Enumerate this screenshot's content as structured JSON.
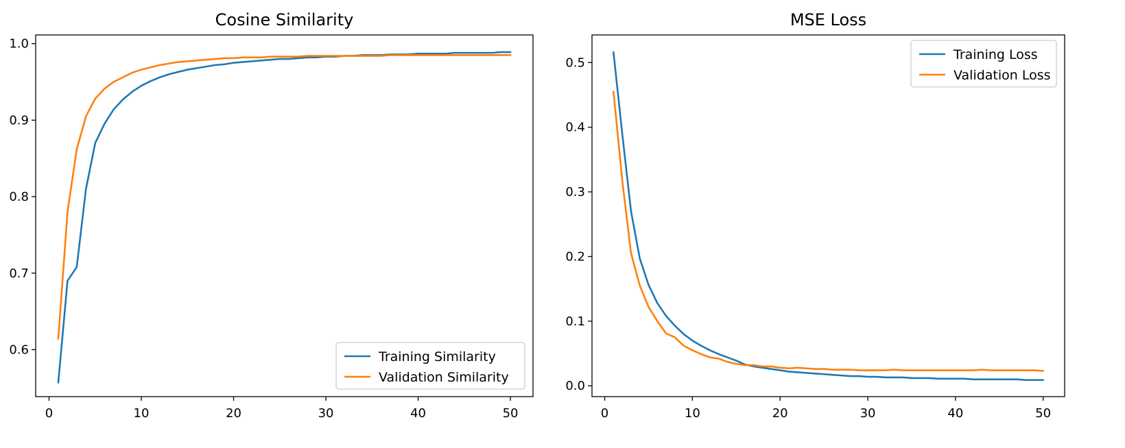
{
  "colors": {
    "training": "#1f77b4",
    "validation": "#ff7f0e"
  },
  "chart_data": [
    {
      "type": "line",
      "title": "Cosine Similarity",
      "xlabel": "",
      "ylabel": "",
      "xlim": [
        -1.45,
        52.45
      ],
      "ylim": [
        0.5386,
        1.0114
      ],
      "xticks": [
        0,
        10,
        20,
        30,
        40,
        50
      ],
      "yticks": [
        0.6,
        0.7,
        0.8,
        0.9,
        1.0
      ],
      "ytick_labels": [
        "0.6",
        "0.7",
        "0.8",
        "0.9",
        "1.0"
      ],
      "legend": "lower right",
      "grid": false,
      "x": [
        1,
        2,
        3,
        4,
        5,
        6,
        7,
        8,
        9,
        10,
        11,
        12,
        13,
        14,
        15,
        16,
        17,
        18,
        19,
        20,
        21,
        22,
        23,
        24,
        25,
        26,
        27,
        28,
        29,
        30,
        31,
        32,
        33,
        34,
        35,
        36,
        37,
        38,
        39,
        40,
        41,
        42,
        43,
        44,
        45,
        46,
        47,
        48,
        49,
        50
      ],
      "series": [
        {
          "name": "Training Similarity",
          "color_key": "training",
          "values": [
            0.557,
            0.69,
            0.708,
            0.81,
            0.87,
            0.895,
            0.914,
            0.927,
            0.937,
            0.945,
            0.951,
            0.956,
            0.96,
            0.963,
            0.966,
            0.968,
            0.97,
            0.972,
            0.973,
            0.975,
            0.976,
            0.977,
            0.978,
            0.979,
            0.98,
            0.98,
            0.981,
            0.982,
            0.982,
            0.983,
            0.983,
            0.984,
            0.984,
            0.985,
            0.985,
            0.985,
            0.986,
            0.986,
            0.986,
            0.987,
            0.987,
            0.987,
            0.987,
            0.988,
            0.988,
            0.988,
            0.988,
            0.988,
            0.989,
            0.989
          ]
        },
        {
          "name": "Validation Similarity",
          "color_key": "validation",
          "values": [
            0.614,
            0.78,
            0.862,
            0.905,
            0.928,
            0.941,
            0.95,
            0.956,
            0.962,
            0.966,
            0.969,
            0.972,
            0.974,
            0.976,
            0.977,
            0.978,
            0.979,
            0.98,
            0.981,
            0.981,
            0.982,
            0.982,
            0.982,
            0.983,
            0.983,
            0.983,
            0.983,
            0.984,
            0.984,
            0.984,
            0.984,
            0.984,
            0.984,
            0.984,
            0.984,
            0.984,
            0.985,
            0.985,
            0.985,
            0.985,
            0.985,
            0.985,
            0.985,
            0.985,
            0.985,
            0.985,
            0.985,
            0.985,
            0.985,
            0.985
          ]
        }
      ]
    },
    {
      "type": "line",
      "title": "MSE Loss",
      "xlabel": "",
      "ylabel": "",
      "xlim": [
        -1.45,
        52.45
      ],
      "ylim": [
        -0.0167,
        0.5427
      ],
      "xticks": [
        0,
        10,
        20,
        30,
        40,
        50
      ],
      "yticks": [
        0.0,
        0.1,
        0.2,
        0.3,
        0.4,
        0.5
      ],
      "ytick_labels": [
        "0.0",
        "0.1",
        "0.2",
        "0.3",
        "0.4",
        "0.5"
      ],
      "legend": "upper right",
      "grid": false,
      "x": [
        1,
        2,
        3,
        4,
        5,
        6,
        7,
        8,
        9,
        10,
        11,
        12,
        13,
        14,
        15,
        16,
        17,
        18,
        19,
        20,
        21,
        22,
        23,
        24,
        25,
        26,
        27,
        28,
        29,
        30,
        31,
        32,
        33,
        34,
        35,
        36,
        37,
        38,
        39,
        40,
        41,
        42,
        43,
        44,
        45,
        46,
        47,
        48,
        49,
        50
      ],
      "series": [
        {
          "name": "Training Loss",
          "color_key": "training",
          "values": [
            0.516,
            0.39,
            0.27,
            0.197,
            0.156,
            0.128,
            0.108,
            0.093,
            0.08,
            0.07,
            0.062,
            0.055,
            0.049,
            0.044,
            0.039,
            0.033,
            0.03,
            0.028,
            0.026,
            0.024,
            0.022,
            0.021,
            0.02,
            0.019,
            0.018,
            0.017,
            0.016,
            0.015,
            0.015,
            0.014,
            0.014,
            0.013,
            0.013,
            0.013,
            0.012,
            0.012,
            0.012,
            0.011,
            0.011,
            0.011,
            0.011,
            0.01,
            0.01,
            0.01,
            0.01,
            0.01,
            0.01,
            0.009,
            0.009,
            0.009
          ]
        },
        {
          "name": "Validation Loss",
          "color_key": "validation",
          "values": [
            0.455,
            0.318,
            0.205,
            0.155,
            0.122,
            0.1,
            0.081,
            0.075,
            0.062,
            0.055,
            0.049,
            0.044,
            0.042,
            0.037,
            0.034,
            0.032,
            0.032,
            0.03,
            0.03,
            0.028,
            0.027,
            0.028,
            0.027,
            0.026,
            0.026,
            0.025,
            0.025,
            0.025,
            0.024,
            0.024,
            0.024,
            0.024,
            0.025,
            0.024,
            0.024,
            0.024,
            0.024,
            0.024,
            0.024,
            0.024,
            0.024,
            0.024,
            0.025,
            0.024,
            0.024,
            0.024,
            0.024,
            0.024,
            0.024,
            0.023
          ]
        }
      ]
    }
  ]
}
